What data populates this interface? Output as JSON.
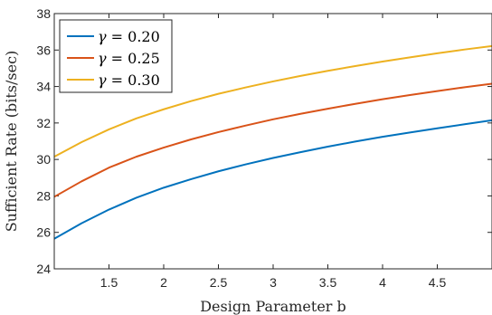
{
  "chart_data": {
    "type": "line",
    "title": "",
    "xlabel": "Design Parameter b",
    "ylabel": "Sufficient Rate (bits/sec)",
    "xlim": [
      1,
      5
    ],
    "ylim": [
      24,
      38
    ],
    "xticks": [
      "1.5",
      "2",
      "2.5",
      "3",
      "3.5",
      "4",
      "4.5"
    ],
    "xtick_values": [
      1.5,
      2,
      2.5,
      3,
      3.5,
      4,
      4.5
    ],
    "yticks": [
      "24",
      "26",
      "28",
      "30",
      "32",
      "34",
      "36",
      "38"
    ],
    "ytick_values": [
      24,
      26,
      28,
      30,
      32,
      34,
      36,
      38
    ],
    "grid": false,
    "legend_position": "top-left",
    "x": [
      1.0,
      1.25,
      1.5,
      1.75,
      2.0,
      2.25,
      2.5,
      2.75,
      3.0,
      3.25,
      3.5,
      3.75,
      4.0,
      4.25,
      4.5,
      4.75,
      5.0
    ],
    "series": [
      {
        "name": "γ = 0.20",
        "color": "#0072BD",
        "values": [
          25.65,
          26.5,
          27.25,
          27.9,
          28.45,
          28.92,
          29.35,
          29.73,
          30.08,
          30.4,
          30.7,
          30.98,
          31.24,
          31.48,
          31.71,
          31.93,
          32.15
        ]
      },
      {
        "name": "γ = 0.25",
        "color": "#D95319",
        "values": [
          27.95,
          28.8,
          29.55,
          30.15,
          30.65,
          31.1,
          31.5,
          31.86,
          32.2,
          32.5,
          32.78,
          33.05,
          33.3,
          33.53,
          33.75,
          33.96,
          34.15
        ]
      },
      {
        "name": "γ = 0.30",
        "color": "#EDB120",
        "values": [
          30.15,
          30.95,
          31.65,
          32.25,
          32.75,
          33.2,
          33.6,
          33.95,
          34.28,
          34.58,
          34.86,
          35.12,
          35.37,
          35.6,
          35.82,
          36.03,
          36.22
        ]
      }
    ],
    "legend_labels": [
      {
        "greek": "γ",
        "rest": " = 0.20"
      },
      {
        "greek": "γ",
        "rest": " = 0.25"
      },
      {
        "greek": "γ",
        "rest": " = 0.30"
      }
    ]
  }
}
